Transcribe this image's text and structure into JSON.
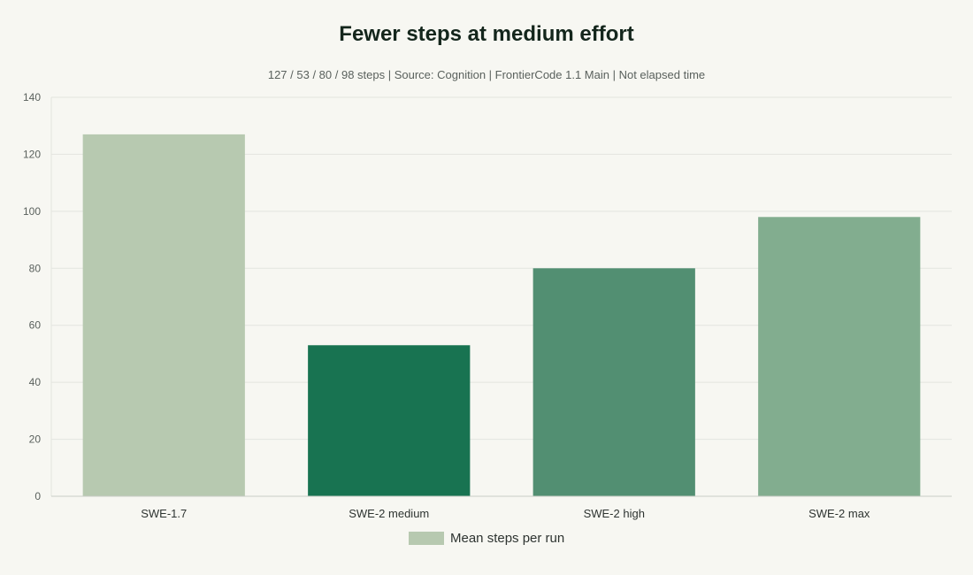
{
  "chart_data": {
    "type": "bar",
    "title": "Fewer steps at medium effort",
    "subtitle": "127 / 53 / 80 / 98 steps | Source: Cognition | FrontierCode 1.1 Main | Not elapsed time",
    "categories": [
      "SWE-1.7",
      "SWE-2 medium",
      "SWE-2 high",
      "SWE-2 max"
    ],
    "series": [
      {
        "name": "Mean steps per run",
        "values": [
          127,
          53,
          80,
          98
        ],
        "colors": [
          "#b7c9b0",
          "#187351",
          "#528f72",
          "#82ad8f"
        ]
      }
    ],
    "legend_color": "#b7c9b0",
    "ylim": [
      0,
      140
    ],
    "yticks": [
      0,
      20,
      40,
      60,
      80,
      100,
      120,
      140
    ],
    "xlabel": "",
    "ylabel": "",
    "grid": true,
    "legend_position": "bottom-center"
  }
}
